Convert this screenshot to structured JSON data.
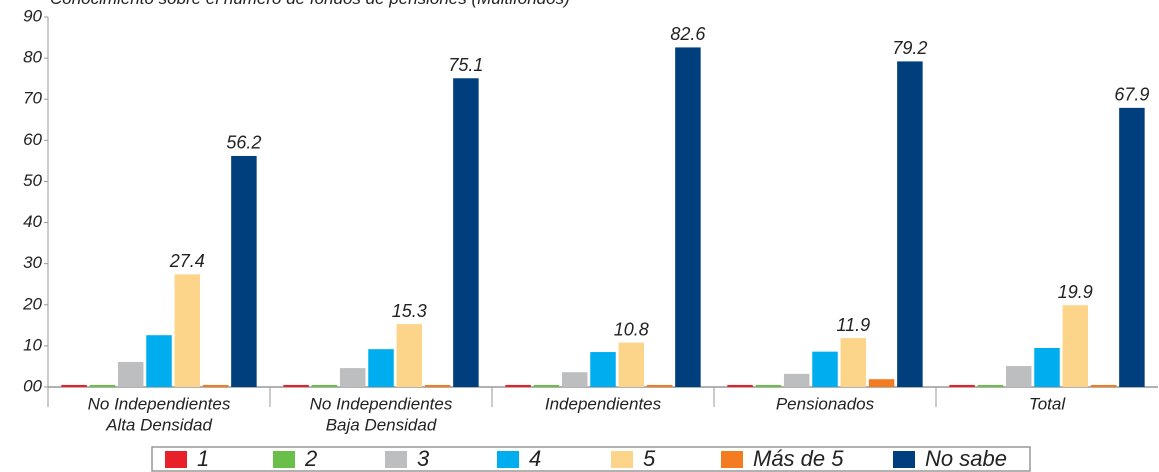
{
  "chart_data": {
    "type": "bar",
    "title": "Conocimiento sobre el número de fondos de pensiones (Multifondos)",
    "categories": [
      [
        "No Independientes",
        "Alta Densidad"
      ],
      [
        "No Independientes",
        "Baja Densidad"
      ],
      [
        "Independientes"
      ],
      [
        "Pensionados"
      ],
      [
        "Total"
      ]
    ],
    "series": [
      {
        "name": "1",
        "color": "#e8202a",
        "values": [
          0.5,
          0.5,
          0.5,
          0.5,
          0.5
        ]
      },
      {
        "name": "2",
        "color": "#6abf4b",
        "values": [
          0.5,
          0.5,
          0.5,
          0.5,
          0.5
        ]
      },
      {
        "name": "3",
        "color": "#bcbec0",
        "values": [
          6.1,
          4.6,
          3.6,
          3.2,
          5.1
        ]
      },
      {
        "name": "4",
        "color": "#00aeef",
        "values": [
          12.6,
          9.2,
          8.5,
          8.6,
          9.5
        ]
      },
      {
        "name": "5",
        "color": "#fdd58a",
        "values": [
          27.4,
          15.3,
          10.8,
          11.9,
          19.9
        ],
        "show_values": true
      },
      {
        "name": "Más de 5",
        "color": "#f37b20",
        "values": [
          0.5,
          0.5,
          0.5,
          1.9,
          0.5
        ]
      },
      {
        "name": "No sabe",
        "color": "#003f7d",
        "values": [
          56.2,
          75.1,
          82.6,
          79.2,
          67.9
        ],
        "show_values": true
      }
    ],
    "ylim": [
      0,
      90
    ],
    "yticks": [
      {
        "value": 0,
        "label": "00"
      },
      10,
      20,
      30,
      40,
      50,
      60,
      70,
      80,
      90
    ],
    "legend": "bottom"
  }
}
